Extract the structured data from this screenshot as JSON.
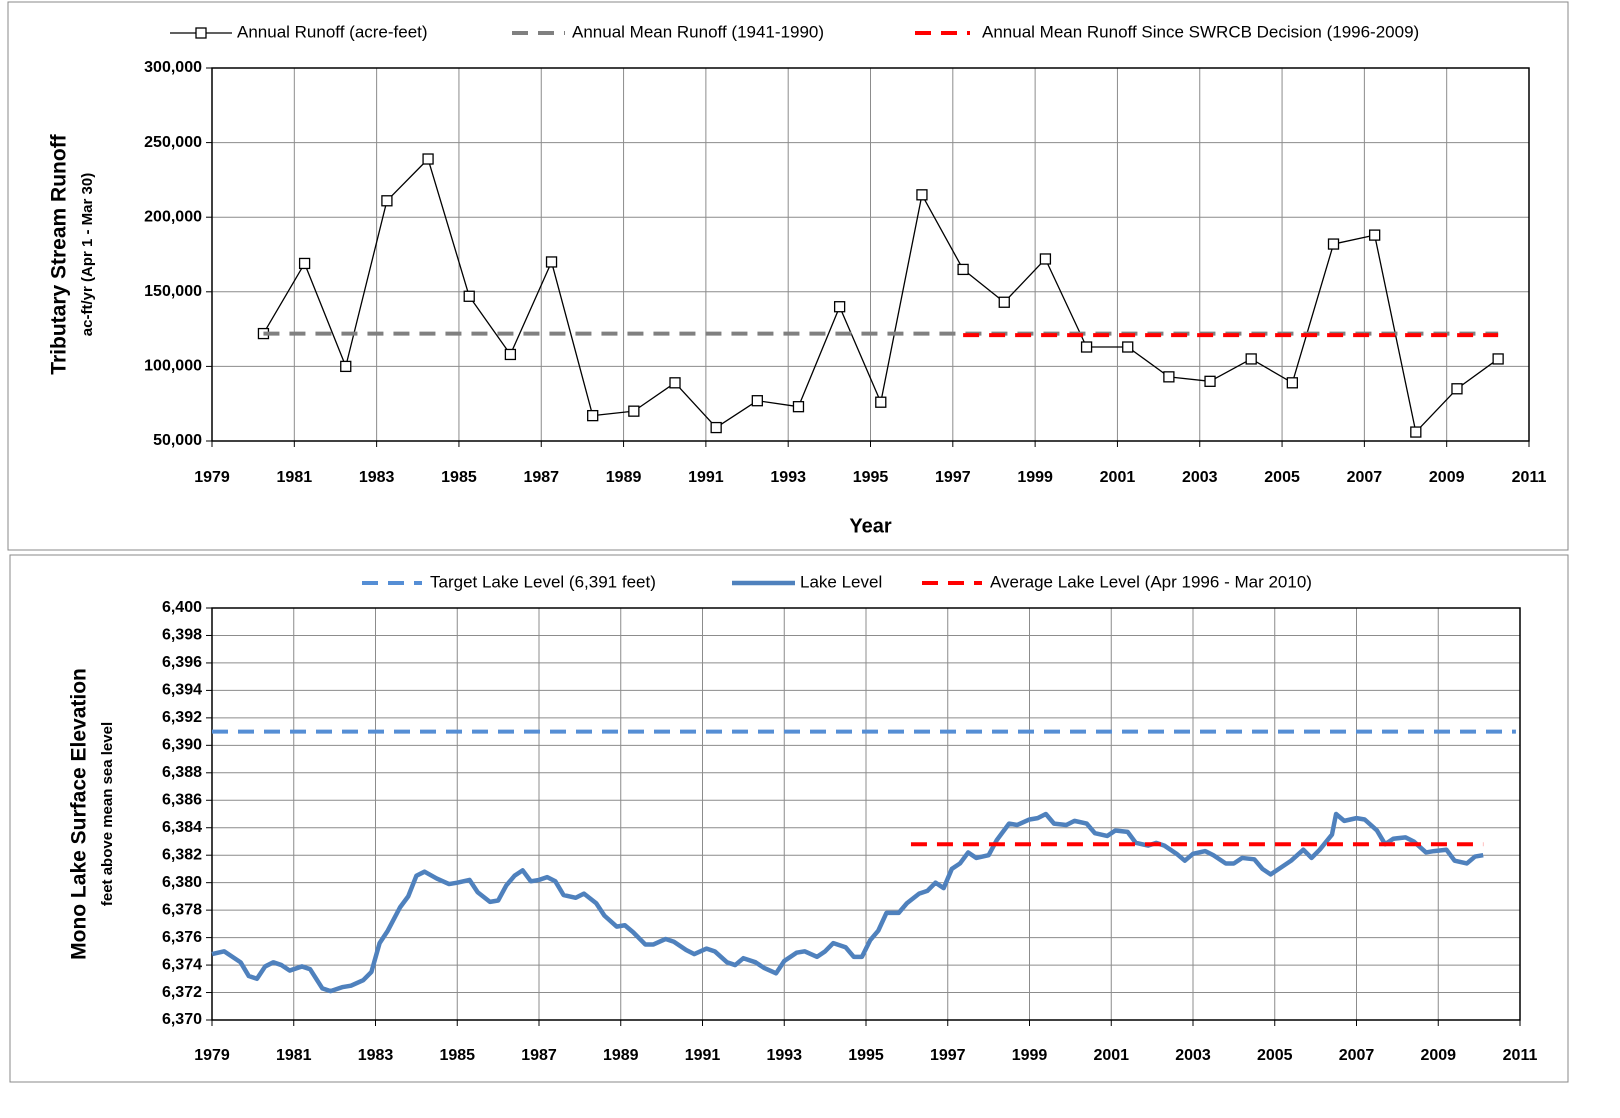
{
  "chart_data": [
    {
      "type": "line",
      "ylabel": "Tributary Stream Runoff",
      "ylabel_sub": "ac-ft/yr (Apr 1 - Mar 30)",
      "xlabel": "Year",
      "xlim": [
        1979,
        2011
      ],
      "xticks": [
        1979,
        1981,
        1983,
        1985,
        1987,
        1989,
        1991,
        1993,
        1995,
        1997,
        1999,
        2001,
        2003,
        2005,
        2007,
        2009,
        2011
      ],
      "ylim": [
        50000,
        300000
      ],
      "yticks": [
        {
          "value": 50000,
          "label": "50,000"
        },
        {
          "value": 100000,
          "label": "100,000"
        },
        {
          "value": 150000,
          "label": "150,000"
        },
        {
          "value": 200000,
          "label": "200,000"
        },
        {
          "value": 250000,
          "label": "250,000"
        },
        {
          "value": 300000,
          "label": "300,000"
        }
      ],
      "grid": true,
      "series": [
        {
          "name": "Annual Runoff (acre-feet)",
          "color": "#000000",
          "marker": "square",
          "dashed": false,
          "width": 1.3,
          "x": [
            1980.25,
            1981.25,
            1982.25,
            1983.25,
            1984.25,
            1985.25,
            1986.25,
            1987.25,
            1988.25,
            1989.25,
            1990.25,
            1991.25,
            1992.25,
            1993.25,
            1994.25,
            1995.25,
            1996.25,
            1997.25,
            1998.25,
            1999.25,
            2000.25,
            2001.25,
            2002.25,
            2003.25,
            2004.25,
            2005.25,
            2006.25,
            2007.25,
            2008.25,
            2009.25,
            2010.25
          ],
          "values": [
            122000,
            169000,
            100000,
            211000,
            239000,
            147000,
            108000,
            170000,
            67000,
            70000,
            89000,
            59000,
            77000,
            73000,
            140000,
            76000,
            215000,
            165000,
            143000,
            172000,
            113000,
            113000,
            93000,
            90000,
            105000,
            89000,
            182000,
            188000,
            56000,
            85000,
            105000
          ]
        },
        {
          "name": "Annual Mean Runoff (1941-1990)",
          "color": "#808080",
          "marker": "none",
          "dashed": true,
          "width": 4,
          "x": [
            1980.25,
            2010.25
          ],
          "values": [
            122000,
            122000
          ]
        },
        {
          "name": "Annual Mean Runoff Since SWRCB Decision (1996-2009)",
          "color": "#ff0000",
          "marker": "none",
          "dashed": true,
          "width": 4,
          "x": [
            1997.25,
            2010.25
          ],
          "values": [
            121000,
            121000
          ]
        }
      ]
    },
    {
      "type": "line",
      "ylabel": "Mono Lake Surface Elevation",
      "ylabel_sub": "feet above mean sea level",
      "xlim": [
        1979,
        2011
      ],
      "xticks": [
        1979,
        1981,
        1983,
        1985,
        1987,
        1989,
        1991,
        1993,
        1995,
        1997,
        1999,
        2001,
        2003,
        2005,
        2007,
        2009,
        2011
      ],
      "ylim": [
        6370,
        6400
      ],
      "yticks": [
        {
          "value": 6370,
          "label": "6,370"
        },
        {
          "value": 6372,
          "label": "6,372"
        },
        {
          "value": 6374,
          "label": "6,374"
        },
        {
          "value": 6376,
          "label": "6,376"
        },
        {
          "value": 6378,
          "label": "6,378"
        },
        {
          "value": 6380,
          "label": "6,380"
        },
        {
          "value": 6382,
          "label": "6,382"
        },
        {
          "value": 6384,
          "label": "6,384"
        },
        {
          "value": 6386,
          "label": "6,386"
        },
        {
          "value": 6388,
          "label": "6,388"
        },
        {
          "value": 6390,
          "label": "6,390"
        },
        {
          "value": 6392,
          "label": "6,392"
        },
        {
          "value": 6394,
          "label": "6,394"
        },
        {
          "value": 6396,
          "label": "6,396"
        },
        {
          "value": 6398,
          "label": "6,398"
        },
        {
          "value": 6400,
          "label": "6,400"
        }
      ],
      "grid": true,
      "series": [
        {
          "name": "Target Lake Level (6,391 feet)",
          "color": "#558ed5",
          "marker": "none",
          "dashed": true,
          "width": 4,
          "x": [
            1979,
            2010.9
          ],
          "values": [
            6391,
            6391
          ]
        },
        {
          "name": "Lake Level",
          "color": "#4f81bd",
          "marker": "none",
          "dashed": false,
          "width": 4.5,
          "x": [
            1979.0,
            1979.3,
            1979.7,
            1979.9,
            1980.1,
            1980.3,
            1980.5,
            1980.7,
            1980.9,
            1981.2,
            1981.4,
            1981.7,
            1981.9,
            1982.2,
            1982.4,
            1982.7,
            1982.9,
            1983.1,
            1983.3,
            1983.6,
            1983.8,
            1984.0,
            1984.2,
            1984.5,
            1984.8,
            1985.0,
            1985.3,
            1985.5,
            1985.8,
            1986.0,
            1986.2,
            1986.4,
            1986.6,
            1986.8,
            1987.0,
            1987.2,
            1987.4,
            1987.6,
            1987.9,
            1988.1,
            1988.4,
            1988.6,
            1988.9,
            1989.1,
            1989.3,
            1989.6,
            1989.8,
            1990.1,
            1990.3,
            1990.6,
            1990.8,
            1991.1,
            1991.3,
            1991.6,
            1991.8,
            1992.0,
            1992.3,
            1992.5,
            1992.8,
            1993.0,
            1993.3,
            1993.5,
            1993.8,
            1994.0,
            1994.2,
            1994.5,
            1994.7,
            1994.9,
            1995.1,
            1995.3,
            1995.5,
            1995.8,
            1996.0,
            1996.3,
            1996.5,
            1996.7,
            1996.9,
            1997.1,
            1997.3,
            1997.5,
            1997.7,
            1998.0,
            1998.2,
            1998.5,
            1998.7,
            1999.0,
            1999.2,
            1999.4,
            1999.6,
            1999.9,
            2000.1,
            2000.4,
            2000.6,
            2000.9,
            2001.1,
            2001.4,
            2001.6,
            2001.9,
            2002.1,
            2002.3,
            2002.6,
            2002.8,
            2003.0,
            2003.3,
            2003.5,
            2003.8,
            2004.0,
            2004.2,
            2004.5,
            2004.7,
            2004.9,
            2005.2,
            2005.4,
            2005.7,
            2005.9,
            2006.1,
            2006.4,
            2006.5,
            2006.7,
            2007.0,
            2007.2,
            2007.5,
            2007.7,
            2007.9,
            2008.2,
            2008.4,
            2008.7,
            2008.9,
            2009.2,
            2009.4,
            2009.7,
            2009.9,
            2010.1
          ],
          "values": [
            6374.8,
            6375.0,
            6374.2,
            6373.2,
            6373.0,
            6373.9,
            6374.2,
            6374.0,
            6373.6,
            6373.9,
            6373.7,
            6372.3,
            6372.1,
            6372.4,
            6372.5,
            6372.9,
            6373.5,
            6375.6,
            6376.5,
            6378.2,
            6379.0,
            6380.5,
            6380.8,
            6380.3,
            6379.9,
            6380.0,
            6380.2,
            6379.3,
            6378.6,
            6378.7,
            6379.8,
            6380.5,
            6380.9,
            6380.1,
            6380.2,
            6380.4,
            6380.1,
            6379.1,
            6378.9,
            6379.2,
            6378.5,
            6377.6,
            6376.8,
            6376.9,
            6376.4,
            6375.5,
            6375.5,
            6375.9,
            6375.7,
            6375.1,
            6374.8,
            6375.2,
            6375.0,
            6374.2,
            6374.0,
            6374.5,
            6374.2,
            6373.8,
            6373.4,
            6374.3,
            6374.9,
            6375.0,
            6374.6,
            6375.0,
            6375.6,
            6375.3,
            6374.6,
            6374.6,
            6375.8,
            6376.5,
            6377.8,
            6377.8,
            6378.5,
            6379.2,
            6379.4,
            6380.0,
            6379.6,
            6381.0,
            6381.4,
            6382.2,
            6381.8,
            6382.0,
            6383.1,
            6384.3,
            6384.2,
            6384.6,
            6384.7,
            6385.0,
            6384.3,
            6384.2,
            6384.5,
            6384.3,
            6383.6,
            6383.4,
            6383.8,
            6383.7,
            6382.9,
            6382.7,
            6382.9,
            6382.7,
            6382.1,
            6381.6,
            6382.1,
            6382.3,
            6382.0,
            6381.4,
            6381.4,
            6381.8,
            6381.7,
            6381.0,
            6380.6,
            6381.2,
            6381.6,
            6382.4,
            6381.8,
            6382.4,
            6383.5,
            6385.0,
            6384.5,
            6384.7,
            6384.6,
            6383.8,
            6382.8,
            6383.2,
            6383.3,
            6383.0,
            6382.2,
            6382.3,
            6382.4,
            6381.6,
            6381.4,
            6381.9,
            6382.0
          ]
        },
        {
          "name": "Average Lake Level (Apr 1996 - Mar 2010)",
          "color": "#ff0000",
          "marker": "none",
          "dashed": true,
          "width": 4,
          "x": [
            1996.1,
            2010.1
          ],
          "values": [
            6382.8,
            6382.8
          ]
        }
      ]
    }
  ]
}
